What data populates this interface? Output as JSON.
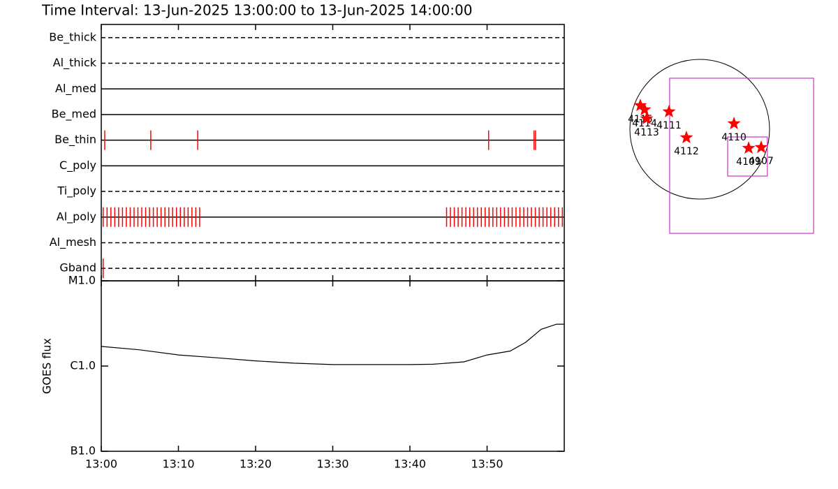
{
  "chart_data": [
    {
      "type": "timeline",
      "title": "Time Interval: 13-Jun-2025 13:00:00 to 13-Jun-2025 14:00:00",
      "xlim": [
        "13:00:00",
        "14:00:00"
      ],
      "event_color": "#ff0000",
      "rows": [
        {
          "name": "Be_thick",
          "style": "dashed",
          "events": []
        },
        {
          "name": "Al_thick",
          "style": "dashed",
          "events": []
        },
        {
          "name": "Al_med",
          "style": "solid",
          "events": []
        },
        {
          "name": "Be_med",
          "style": "solid",
          "events": []
        },
        {
          "name": "Be_thin",
          "style": "solid",
          "events": [
            "13:00:27",
            "13:06:25",
            "13:12:30",
            "13:50:12",
            "13:56:05",
            "13:56:17"
          ]
        },
        {
          "name": "C_poly",
          "style": "solid",
          "events": []
        },
        {
          "name": "Ti_poly",
          "style": "dashed",
          "events": []
        },
        {
          "name": "Al_poly",
          "style": "solid",
          "events": [
            "13:00:15",
            "13:00:45",
            "13:01:15",
            "13:01:45",
            "13:02:15",
            "13:02:45",
            "13:03:15",
            "13:03:45",
            "13:04:15",
            "13:04:45",
            "13:05:15",
            "13:05:45",
            "13:06:15",
            "13:06:45",
            "13:07:15",
            "13:07:45",
            "13:08:15",
            "13:08:45",
            "13:09:15",
            "13:09:45",
            "13:10:15",
            "13:10:45",
            "13:11:15",
            "13:11:45",
            "13:12:15",
            "13:12:45",
            "13:44:45",
            "13:45:15",
            "13:45:45",
            "13:46:15",
            "13:46:45",
            "13:47:15",
            "13:47:45",
            "13:48:15",
            "13:48:45",
            "13:49:15",
            "13:49:45",
            "13:50:15",
            "13:50:45",
            "13:51:15",
            "13:51:45",
            "13:52:15",
            "13:52:45",
            "13:53:15",
            "13:53:45",
            "13:54:15",
            "13:54:45",
            "13:55:15",
            "13:55:45",
            "13:56:15",
            "13:56:45",
            "13:57:15",
            "13:57:45",
            "13:58:15",
            "13:58:45",
            "13:59:15",
            "13:59:45"
          ]
        },
        {
          "name": "Al_mesh",
          "style": "dashed",
          "events": []
        },
        {
          "name": "Gband",
          "style": "dashed",
          "events": [
            "13:00:15"
          ]
        }
      ]
    },
    {
      "type": "line",
      "ylabel": "GOES flux",
      "log_scale": true,
      "color": "#000000",
      "xlim": [
        "13:00:00",
        "14:00:00"
      ],
      "xticks": [
        "13:00",
        "13:10",
        "13:20",
        "13:30",
        "13:40",
        "13:50"
      ],
      "ylim": [
        1e-07,
        1e-05
      ],
      "yticks": [
        {
          "value": 1e-07,
          "label": "B1.0"
        },
        {
          "value": 1e-06,
          "label": "C1.0"
        },
        {
          "value": 1e-05,
          "label": "M1.0"
        }
      ],
      "x": [
        "13:00",
        "13:05",
        "13:10",
        "13:15",
        "13:20",
        "13:25",
        "13:30",
        "13:35",
        "13:40",
        "13:43",
        "13:47",
        "13:50",
        "13:53",
        "13:55",
        "13:57",
        "13:59",
        "14:00"
      ],
      "values": [
        1.7e-06,
        1.55e-06,
        1.35e-06,
        1.25e-06,
        1.15e-06,
        1.08e-06,
        1.04e-06,
        1.04e-06,
        1.04e-06,
        1.05e-06,
        1.12e-06,
        1.35e-06,
        1.5e-06,
        1.9e-06,
        2.7e-06,
        3.1e-06,
        3.1e-06
      ]
    },
    {
      "type": "disk-map",
      "disk_radius": 950,
      "star_color": "#ff0000",
      "box_color": "#cc33cc",
      "regions": [
        {
          "name": "4115",
          "x": -808,
          "y": 323
        },
        {
          "name": "4114",
          "x": -750,
          "y": 266
        },
        {
          "name": "4113",
          "x": -722,
          "y": 143
        },
        {
          "name": "4111",
          "x": -418,
          "y": 238
        },
        {
          "name": "4112",
          "x": -181,
          "y": -114
        },
        {
          "name": "4110",
          "x": 466,
          "y": 76
        },
        {
          "name": "4109",
          "x": 665,
          "y": -257
        },
        {
          "name": "4107",
          "x": 836,
          "y": -247
        }
      ],
      "boxes": [
        {
          "x": [
            -409,
            1549
          ],
          "y": [
            -1416,
            694
          ]
        },
        {
          "x": [
            380,
            920
          ],
          "y": [
            -637,
            -105
          ]
        }
      ]
    }
  ]
}
